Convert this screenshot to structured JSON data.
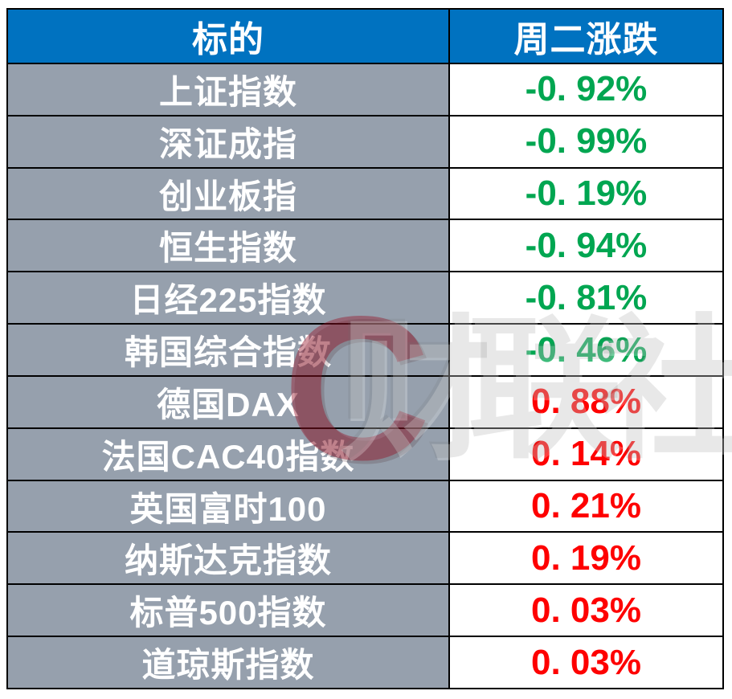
{
  "chart_data": {
    "type": "table",
    "title": "",
    "columns": [
      "标的",
      "周二涨跌"
    ],
    "rows": [
      [
        "上证指数",
        "-0.92%"
      ],
      [
        "深证成指",
        "-0.99%"
      ],
      [
        "创业板指",
        "-0.19%"
      ],
      [
        "恒生指数",
        "-0.94%"
      ],
      [
        "日经225指数",
        "-0.81%"
      ],
      [
        "韩国综合指数",
        "-0.46%"
      ],
      [
        "德国DAX",
        "0.88%"
      ],
      [
        "法国CAC40指数",
        "0.14%"
      ],
      [
        "英国富时100",
        "0.21%"
      ],
      [
        "纳斯达克指数",
        "0.19%"
      ],
      [
        "标普500指数",
        "0.03%"
      ],
      [
        "道琼斯指数",
        "0.03%"
      ]
    ],
    "layout": {
      "grid": "black 2px cell borders",
      "legend_position": "none"
    }
  },
  "table": {
    "header": {
      "col1": "标的",
      "col2": "周二涨跌"
    },
    "rows": [
      {
        "label": "上证指数",
        "change": "-0. 92%",
        "direction": "down"
      },
      {
        "label": "深证成指",
        "change": "-0. 99%",
        "direction": "down"
      },
      {
        "label": "创业板指",
        "change": "-0. 19%",
        "direction": "down"
      },
      {
        "label": "恒生指数",
        "change": "-0. 94%",
        "direction": "down"
      },
      {
        "label": "日经225指数",
        "change": "-0. 81%",
        "direction": "down"
      },
      {
        "label": "韩国综合指数",
        "change": "-0. 46%",
        "direction": "down"
      },
      {
        "label": "德国DAX",
        "change": "0. 88%",
        "direction": "up"
      },
      {
        "label": "法国CAC40指数",
        "change": "0. 14%",
        "direction": "up"
      },
      {
        "label": "英国富时100",
        "change": "0. 21%",
        "direction": "up"
      },
      {
        "label": "纳斯达克指数",
        "change": "0. 19%",
        "direction": "up"
      },
      {
        "label": "标普500指数",
        "change": "0. 03%",
        "direction": "up"
      },
      {
        "label": "道琼斯指数",
        "change": "0. 03%",
        "direction": "up"
      }
    ]
  },
  "watermark": {
    "logo_glyph": "C",
    "text": "财联社"
  },
  "colors": {
    "header_bg": "#0072c0",
    "label_bg": "#96a0ad",
    "down": "#00a651",
    "up": "#fe0000"
  }
}
